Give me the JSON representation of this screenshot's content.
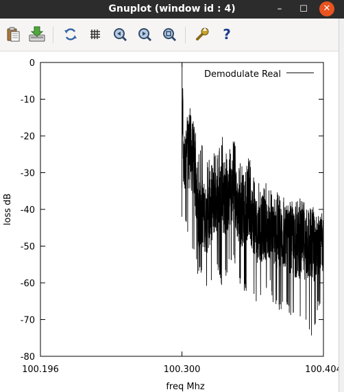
{
  "window": {
    "title": "Gnuplot (window id : 4)",
    "minimize_glyph": "–",
    "maximize_glyph": "☐",
    "close_glyph": "✕"
  },
  "toolbar": {
    "buttons": [
      {
        "icon": "clipboard-copy-icon"
      },
      {
        "icon": "export-icon"
      },
      {
        "icon": "replot-icon"
      },
      {
        "icon": "grid-icon"
      },
      {
        "icon": "zoom-previous-icon"
      },
      {
        "icon": "zoom-next-icon"
      },
      {
        "icon": "autoscale-icon"
      },
      {
        "icon": "settings-icon"
      },
      {
        "icon": "help-icon",
        "glyph": "?"
      }
    ]
  },
  "chart_data": {
    "type": "line",
    "title": "",
    "xlabel": "freq Mhz",
    "ylabel": "loss dB",
    "xlim": [
      100.196,
      100.404
    ],
    "ylim": [
      -80,
      0
    ],
    "xticks": [
      100.196,
      100.3,
      100.404
    ],
    "xtick_labels": [
      "100.196",
      "100.300",
      "100.404"
    ],
    "yticks": [
      0,
      -10,
      -20,
      -30,
      -40,
      -50,
      -60,
      -70,
      -80
    ],
    "ytick_labels": [
      "0",
      "-10",
      "-20",
      "-30",
      "-40",
      "-50",
      "-60",
      "-70",
      "-80"
    ],
    "grid": false,
    "legend_position": "top-right",
    "series": [
      {
        "name": "Demodulate Real",
        "color": "#000000",
        "envelope": {
          "x": [
            100.3,
            100.3005,
            100.301,
            100.303,
            100.306,
            100.309,
            100.312,
            100.315,
            100.318,
            100.322,
            100.325,
            100.33,
            100.334,
            100.338,
            100.342,
            100.347,
            100.35,
            100.353,
            100.356,
            100.36,
            100.364,
            100.368,
            100.372,
            100.376,
            100.38,
            100.384,
            100.388,
            100.392,
            100.396,
            100.4,
            100.404
          ],
          "y_max": [
            -3,
            0,
            -18,
            -15,
            -12,
            -15,
            -25,
            -22,
            -28,
            -21,
            -25,
            -20,
            -25,
            -20,
            -28,
            -22,
            -26,
            -31,
            -33,
            -32,
            -34,
            -35,
            -35,
            -37,
            -37,
            -38,
            -36,
            -38,
            -39,
            -39,
            -40
          ],
          "y_min": [
            -42,
            -44,
            -43,
            -45,
            -50,
            -53,
            -59,
            -57,
            -62,
            -60,
            -55,
            -62,
            -56,
            -55,
            -60,
            -63,
            -58,
            -64,
            -66,
            -65,
            -61,
            -67,
            -68,
            -66,
            -69,
            -72,
            -71,
            -73,
            -78,
            -67,
            -67
          ],
          "center": [
            -30,
            -10,
            -28,
            -26,
            -24,
            -27,
            -42,
            -41,
            -43,
            -38,
            -38,
            -36,
            -38,
            -34,
            -42,
            -38,
            -40,
            -44,
            -46,
            -45,
            -46,
            -47,
            -48,
            -48,
            -49,
            -50,
            -49,
            -50,
            -50,
            -50,
            -50
          ]
        }
      }
    ]
  }
}
